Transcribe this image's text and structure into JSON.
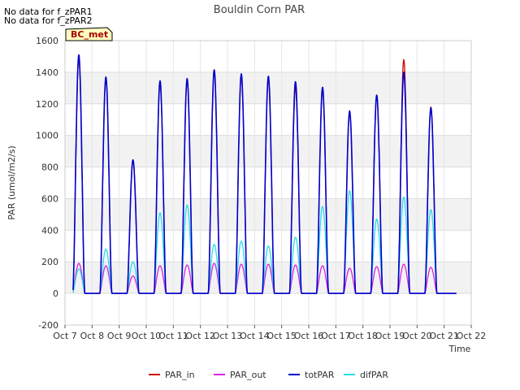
{
  "notes": [
    "No data for f_zPAR1",
    "No data for f_zPAR2"
  ],
  "badge": "BC_met",
  "chart_data": {
    "type": "line",
    "title": "Bouldin Corn PAR",
    "xlabel": "Time",
    "ylabel": "PAR (umol/m2/s)",
    "xlim": [
      7,
      22
    ],
    "ylim": [
      -200,
      1600
    ],
    "yticks": [
      -200,
      0,
      200,
      400,
      600,
      800,
      1000,
      1200,
      1400,
      1600
    ],
    "xticks": [
      7,
      8,
      9,
      10,
      11,
      12,
      13,
      14,
      15,
      16,
      17,
      18,
      19,
      20,
      21,
      22
    ],
    "xtick_labels": [
      "Oct 7",
      "Oct 8",
      "Oct 9",
      "Oct 10",
      "Oct 11",
      "Oct 12",
      "Oct 13",
      "Oct 14",
      "Oct 15",
      "Oct 16",
      "Oct 17",
      "Oct 18",
      "Oct 19",
      "Oct 20",
      "Oct 21",
      "Oct 22"
    ],
    "grid": true,
    "legend": "bottom",
    "x_start": 7.3,
    "x_end": 21.45,
    "days": [
      {
        "day": 7,
        "totPAR": 1510,
        "PAR_in": 1490,
        "PAR_out": 190,
        "difPAR": 155
      },
      {
        "day": 8,
        "totPAR": 1370,
        "PAR_in": 1360,
        "PAR_out": 175,
        "difPAR": 280
      },
      {
        "day": 9,
        "totPAR": 845,
        "PAR_in": 840,
        "PAR_out": 110,
        "difPAR": 200
      },
      {
        "day": 10,
        "totPAR": 1345,
        "PAR_in": 1330,
        "PAR_out": 175,
        "difPAR": 510
      },
      {
        "day": 11,
        "totPAR": 1360,
        "PAR_in": 1350,
        "PAR_out": 180,
        "difPAR": 560
      },
      {
        "day": 12,
        "totPAR": 1415,
        "PAR_in": 1405,
        "PAR_out": 190,
        "difPAR": 310
      },
      {
        "day": 13,
        "totPAR": 1390,
        "PAR_in": 1380,
        "PAR_out": 185,
        "difPAR": 330
      },
      {
        "day": 14,
        "totPAR": 1375,
        "PAR_in": 1365,
        "PAR_out": 185,
        "difPAR": 300
      },
      {
        "day": 15,
        "totPAR": 1340,
        "PAR_in": 1300,
        "PAR_out": 180,
        "difPAR": 355
      },
      {
        "day": 16,
        "totPAR": 1305,
        "PAR_in": 1290,
        "PAR_out": 175,
        "difPAR": 550
      },
      {
        "day": 17,
        "totPAR": 1155,
        "PAR_in": 1145,
        "PAR_out": 160,
        "difPAR": 650
      },
      {
        "day": 18,
        "totPAR": 1255,
        "PAR_in": 1250,
        "PAR_out": 170,
        "difPAR": 470
      },
      {
        "day": 19,
        "totPAR": 1400,
        "PAR_in": 1480,
        "PAR_out": 185,
        "difPAR": 610
      },
      {
        "day": 20,
        "totPAR": 1175,
        "PAR_in": 1180,
        "PAR_out": 165,
        "difPAR": 530
      }
    ],
    "series": [
      {
        "name": "PAR_in",
        "color": "#cc0000",
        "key": "PAR_in"
      },
      {
        "name": "PAR_out",
        "color": "#dd22dd",
        "key": "PAR_out"
      },
      {
        "name": "totPAR",
        "color": "#0000cc",
        "key": "totPAR"
      },
      {
        "name": "difPAR",
        "color": "#22ddee",
        "key": "difPAR"
      }
    ]
  }
}
